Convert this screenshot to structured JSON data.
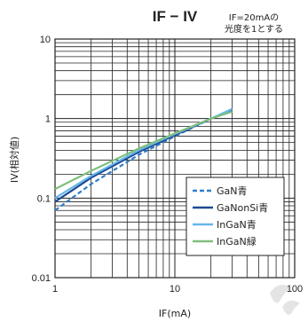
{
  "chart_data": {
    "type": "line",
    "title": "IF − IV",
    "note_line1": "IF=20mAの",
    "note_line2": "光度を1とする",
    "xlabel": "IF(mA)",
    "ylabel": "IV(相対値)",
    "x_scale": "log",
    "y_scale": "log",
    "xlim": [
      1,
      100
    ],
    "ylim": [
      0.01,
      10
    ],
    "x_ticks": [
      "1",
      "10",
      "100"
    ],
    "y_ticks": [
      "10",
      "1",
      "0.1",
      "0.01"
    ],
    "grid": true,
    "legend_position": "lower-right",
    "series": [
      {
        "name": "GaN青",
        "color": "#2f7fc8",
        "dash": true,
        "x": [
          1,
          2,
          5,
          10,
          20,
          30
        ],
        "y": [
          0.07,
          0.15,
          0.35,
          0.6,
          1.0,
          1.3
        ]
      },
      {
        "name": "GaNonSi青",
        "color": "#1f4a96",
        "dash": false,
        "x": [
          1,
          2,
          5,
          10,
          20,
          30
        ],
        "y": [
          0.09,
          0.18,
          0.38,
          0.62,
          1.0,
          1.25
        ]
      },
      {
        "name": "InGaN青",
        "color": "#66b8e8",
        "dash": false,
        "x": [
          1,
          2,
          5,
          10,
          20,
          30
        ],
        "y": [
          0.1,
          0.19,
          0.4,
          0.64,
          1.0,
          1.32
        ]
      },
      {
        "name": "InGaN緑",
        "color": "#7fbf7f",
        "dash": false,
        "x": [
          1,
          2,
          5,
          10,
          20,
          30
        ],
        "y": [
          0.13,
          0.22,
          0.42,
          0.65,
          1.0,
          1.22
        ]
      }
    ]
  }
}
